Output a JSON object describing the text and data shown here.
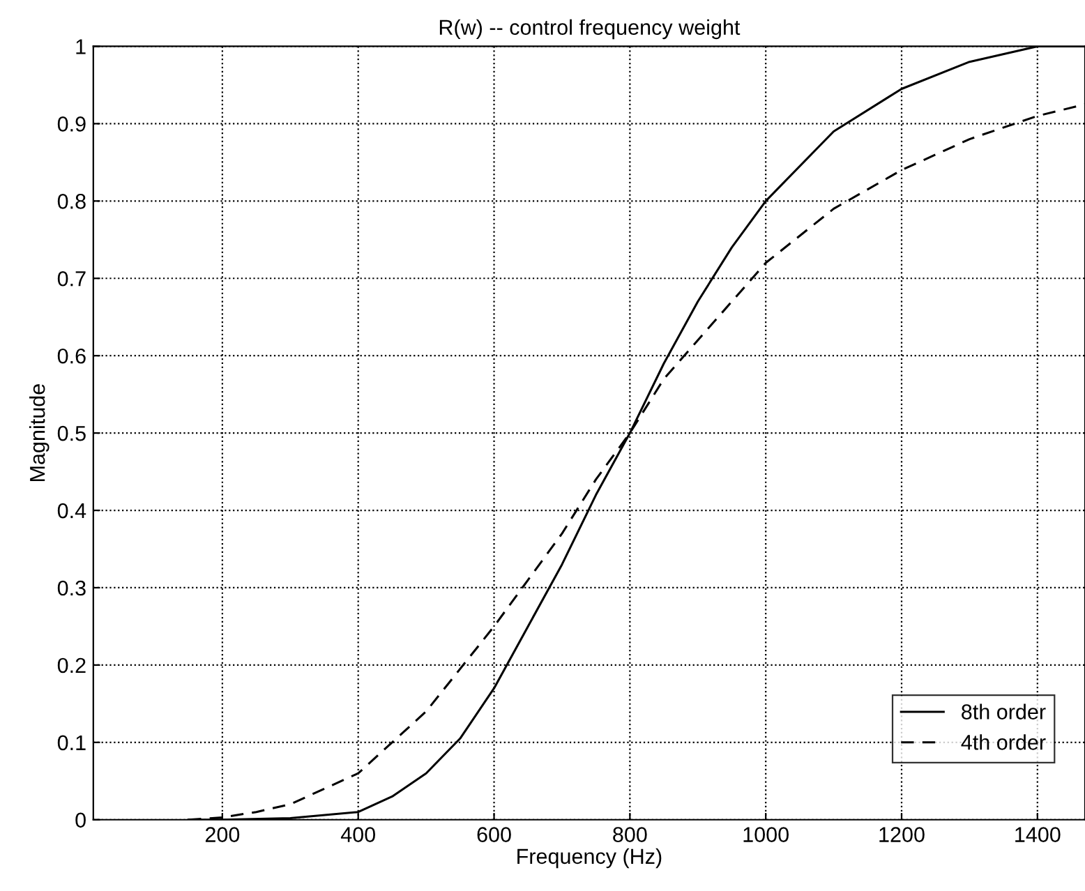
{
  "chart_data": {
    "type": "line",
    "title": "R(w) -- control frequency weight",
    "xlabel": "Frequency (Hz)",
    "ylabel": "Magnitude",
    "series": [
      {
        "name": "8th order",
        "color": "#000000",
        "line_style": "solid",
        "x": [
          150,
          200,
          300,
          400,
          450,
          500,
          550,
          600,
          650,
          700,
          750,
          800,
          850,
          900,
          950,
          1000,
          1100,
          1200,
          1300,
          1400,
          1470
        ],
        "values": [
          0,
          0,
          0.002,
          0.01,
          0.03,
          0.06,
          0.105,
          0.17,
          0.25,
          0.33,
          0.42,
          0.5,
          0.59,
          0.67,
          0.74,
          0.8,
          0.89,
          0.945,
          0.98,
          1.0,
          1.0
        ]
      },
      {
        "name": "4th order",
        "color": "#000000",
        "line_style": "dashed",
        "x": [
          150,
          200,
          250,
          300,
          400,
          500,
          600,
          650,
          700,
          750,
          800,
          850,
          900,
          1000,
          1100,
          1200,
          1300,
          1400,
          1470
        ],
        "values": [
          0,
          0.003,
          0.01,
          0.02,
          0.06,
          0.14,
          0.25,
          0.31,
          0.37,
          0.44,
          0.5,
          0.57,
          0.62,
          0.72,
          0.79,
          0.84,
          0.88,
          0.91,
          0.925
        ]
      }
    ],
    "xlim": [
      10,
      1470
    ],
    "ylim": [
      0,
      1
    ],
    "xticks": [
      200,
      400,
      600,
      800,
      1000,
      1200,
      1400
    ],
    "yticks": [
      0,
      0.1,
      0.2,
      0.3,
      0.4,
      0.5,
      0.6,
      0.7,
      0.8,
      0.9,
      1
    ],
    "grid": true,
    "legend": "bottom right"
  }
}
